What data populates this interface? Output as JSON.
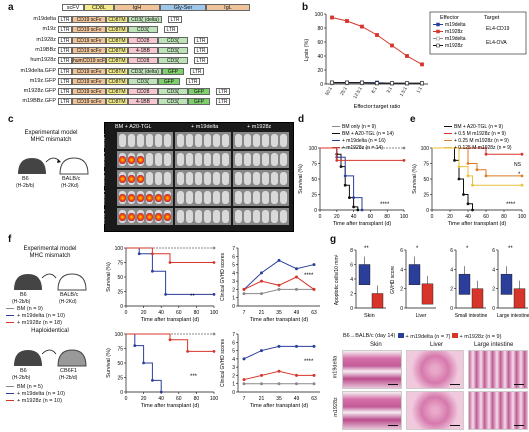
{
  "panels": {
    "a": "a",
    "b": "b",
    "c": "c",
    "d": "d",
    "e": "e",
    "f": "f",
    "g": "g"
  },
  "panel_a": {
    "header": [
      "scFV",
      "CD8L",
      "IgH",
      "Gly-Ser",
      "IgL"
    ],
    "constructs": [
      {
        "name": "m19delta",
        "parts": [
          "LTR",
          "CD19 scFv",
          "CD8TM",
          "CD3ζ (delta)",
          "LTR"
        ]
      },
      {
        "name": "m19z",
        "parts": [
          "LTR",
          "CD19 scFv",
          "CD8TM",
          "CD3ζ",
          "LTR"
        ]
      },
      {
        "name": "m1928z",
        "parts": [
          "LTR",
          "CD19 scFv",
          "CD8TM",
          "CD28",
          "CD3ζ",
          "LTR"
        ]
      },
      {
        "name": "m19BBz",
        "parts": [
          "LTR",
          "CD19 scFv",
          "CD8TM",
          "4-1BB",
          "CD3ζ",
          "LTR"
        ]
      },
      {
        "name": "hum1928z",
        "parts": [
          "LTR",
          "humCD19 scFv",
          "CD8TM",
          "CD28",
          "CD3ζ",
          "LTR"
        ]
      },
      {
        "name": "m19delta.GFP",
        "parts": [
          "LTR",
          "CD19 scFv",
          "CD8TM",
          "CD3ζ (delta)",
          "GFP",
          "LTR"
        ]
      },
      {
        "name": "m19z.GFP",
        "parts": [
          "LTR",
          "CD19 scFv",
          "CD8TM",
          "CD3ζ",
          "GFP",
          "LTR"
        ]
      },
      {
        "name": "m1928z.GFP",
        "parts": [
          "LTR",
          "CD19 scFv",
          "CD8TM",
          "CD28",
          "CD3ζ",
          "GFP",
          "LTR"
        ]
      },
      {
        "name": "m19BBz.GFP",
        "parts": [
          "LTR",
          "CD19 scFv",
          "CD8TM",
          "4-1BB",
          "CD3ζ",
          "GFP",
          "LTR"
        ]
      }
    ]
  },
  "panel_c": {
    "model_title": "Experimental model",
    "model_sub": "MHC mismatch",
    "donor": "B6",
    "donor_h": "(H-2b/b)",
    "recipient": "BALB/c",
    "recipient_h": "(H-2Kd)",
    "columns": [
      "BM + A20-TGL",
      "+ m19delta",
      "+ m1928z"
    ],
    "weeks": [
      "Week 1",
      "Week 2",
      "Week 3",
      "Week 4",
      "Week 7"
    ]
  },
  "panel_f": {
    "top": {
      "model_title": "Experimental model",
      "model_sub": "MHC mismatch",
      "donor": "B6",
      "donor_h": "(H-2b/b)",
      "recipient": "BALB/c",
      "recipient_h": "(H-2Kd)",
      "legend": [
        "BM (n = 9)",
        "+ m19delta (n = 10)",
        "+ m1928z (n = 18)"
      ],
      "sig_surv": "**",
      "sig_gvhd": "****"
    },
    "bottom": {
      "model_title": "Haploidentical",
      "donor": "B6",
      "donor_h": "(H-2b/b)",
      "recipient": "CB6F1",
      "recipient_h": "(H-2b/d)",
      "legend": [
        "BM (n = 5)",
        "+ m19delta (n = 10)",
        "+ m1928z (n = 10)"
      ],
      "sig_surv": "***",
      "sig_gvhd": "****"
    },
    "surv_ylabel": "Survival (%)",
    "surv_xlabel": "Time after transplant (d)",
    "gvhd_ylabel": "Clinical GVHD scores",
    "gvhd_xlabel": "Time after transplant (d)"
  },
  "panel_g": {
    "ylabel_left": "Apoptotic cells/10 mm²",
    "ylabel_mid": "GVHD score",
    "sig": [
      "**",
      "*",
      "*",
      "**"
    ],
    "groups": [
      "Skin",
      "Liver",
      "Small intestine",
      "Large intestine"
    ],
    "caption": "B6→BALB/c (day 14)",
    "legend": [
      "+ m19delta (n = 7)",
      "+ m1928z (n = 9)"
    ],
    "histo_cols": [
      "Skin",
      "Liver",
      "Large intestine"
    ],
    "histo_rows": [
      "m19delta",
      "m1928z"
    ]
  },
  "colors": {
    "red": "#d8352a",
    "blue": "#2b3f9a",
    "grey": "#8a8a8a",
    "black": "#111111",
    "orange": "#e07b22",
    "yellow": "#e8c23a"
  },
  "chart_data": [
    {
      "id": "b",
      "type": "line",
      "xlabel": "Effector:target ratio",
      "ylabel": "Lysis (%)",
      "ylim": [
        0,
        100
      ],
      "categories": [
        "50:1",
        "25:1",
        "12.5:1",
        "6:1",
        "3:1",
        "1.5:1",
        "1:1"
      ],
      "legend_title": [
        "Effector",
        "Target"
      ],
      "target_labels": [
        "EL4-CD19",
        "EL4-OVA"
      ],
      "series": [
        {
          "name": "m19delta",
          "values": [
            2,
            2,
            2,
            2,
            1,
            1,
            1
          ]
        },
        {
          "name": "m1928z",
          "values": [
            95,
            90,
            82,
            70,
            55,
            40,
            28
          ]
        },
        {
          "name": "m19delta",
          "values": [
            1,
            1,
            1,
            1,
            1,
            1,
            1
          ]
        },
        {
          "name": "m1928z",
          "values": [
            2,
            2,
            2,
            1,
            1,
            1,
            1
          ]
        }
      ]
    },
    {
      "id": "d",
      "type": "line",
      "xlabel": "Time after transplant (d)",
      "ylabel": "Survival (%)",
      "ylim": [
        0,
        100
      ],
      "xlim": [
        0,
        100
      ],
      "series": [
        {
          "name": "BM only (n = 9)",
          "x": [
            0,
            100
          ],
          "y": [
            100,
            100
          ]
        },
        {
          "name": "BM + A20-TGL (n = 14)",
          "x": [
            0,
            20,
            25,
            30,
            35,
            40,
            45
          ],
          "y": [
            100,
            90,
            70,
            40,
            20,
            5,
            0
          ]
        },
        {
          "name": "+ m19delta (n = 16)",
          "x": [
            0,
            20,
            30,
            40,
            50
          ],
          "y": [
            100,
            85,
            55,
            20,
            0
          ]
        },
        {
          "name": "+ m1928z (n = 14)",
          "x": [
            0,
            20,
            100
          ],
          "y": [
            100,
            80,
            80
          ]
        }
      ],
      "sig": "****"
    },
    {
      "id": "e",
      "type": "line",
      "xlabel": "Time after transplant (d)",
      "ylabel": "Survival (%)",
      "ylim": [
        0,
        100
      ],
      "xlim": [
        0,
        100
      ],
      "series": [
        {
          "name": "BM + A20-TGL (n = 9)",
          "x": [
            0,
            25,
            30,
            35,
            40,
            45
          ],
          "y": [
            100,
            80,
            50,
            25,
            10,
            0
          ]
        },
        {
          "name": "+ 0.5 M m1928z (n = 9)",
          "x": [
            0,
            60,
            100
          ],
          "y": [
            100,
            90,
            90
          ]
        },
        {
          "name": "+ 0.25 M m1928z (n = 9)",
          "x": [
            0,
            40,
            50,
            60,
            100
          ],
          "y": [
            100,
            75,
            65,
            55,
            55
          ]
        },
        {
          "name": "+ 0.125 M m1928z (n = 9)",
          "x": [
            0,
            30,
            40,
            45,
            100
          ],
          "y": [
            100,
            70,
            55,
            40,
            40
          ]
        }
      ],
      "sig": [
        "NS",
        "*",
        "****"
      ]
    },
    {
      "id": "f_top_survival",
      "type": "line",
      "ylim": [
        0,
        100
      ],
      "xlim": [
        0,
        100
      ],
      "series": [
        {
          "name": "BM (n = 9)",
          "x": [
            0,
            100
          ],
          "y": [
            100,
            100
          ]
        },
        {
          "name": "+ m19delta (n = 10)",
          "x": [
            0,
            15,
            30,
            45,
            100
          ],
          "y": [
            100,
            90,
            60,
            20,
            20
          ]
        },
        {
          "name": "+ m1928z (n = 18)",
          "x": [
            0,
            30,
            50,
            100
          ],
          "y": [
            100,
            90,
            75,
            75
          ]
        }
      ]
    },
    {
      "id": "f_top_gvhd",
      "type": "line",
      "ylim": [
        0,
        7
      ],
      "categories": [
        "7",
        "21",
        "35",
        "49",
        "63"
      ],
      "series": [
        {
          "name": "BM (n = 9)",
          "values": [
            1.5,
            1.5,
            2,
            2,
            2
          ]
        },
        {
          "name": "+ m19delta (n = 10)",
          "values": [
            2,
            4,
            5.5,
            4.5,
            5
          ]
        },
        {
          "name": "+ m1928z (n = 18)",
          "values": [
            2,
            3,
            2.5,
            3.5,
            2
          ]
        }
      ]
    },
    {
      "id": "f_bottom_survival",
      "type": "line",
      "ylim": [
        0,
        100
      ],
      "xlim": [
        0,
        100
      ],
      "series": [
        {
          "name": "BM (n = 5)",
          "x": [
            0,
            100
          ],
          "y": [
            100,
            100
          ]
        },
        {
          "name": "+ m19delta (n = 10)",
          "x": [
            0,
            10,
            20,
            30,
            40
          ],
          "y": [
            100,
            80,
            50,
            20,
            0
          ]
        },
        {
          "name": "+ m1928z (n = 10)",
          "x": [
            0,
            50,
            70,
            100
          ],
          "y": [
            100,
            90,
            70,
            70
          ]
        }
      ]
    },
    {
      "id": "f_bottom_gvhd",
      "type": "line",
      "ylim": [
        0,
        7
      ],
      "categories": [
        "7",
        "21",
        "35",
        "49",
        "63"
      ],
      "series": [
        {
          "name": "BM (n = 5)",
          "values": [
            1,
            1,
            1,
            1,
            1
          ]
        },
        {
          "name": "+ m19delta (n = 10)",
          "values": [
            4,
            5,
            5.5,
            5.5,
            5.5
          ]
        },
        {
          "name": "+ m1928z (n = 10)",
          "values": [
            1.5,
            2,
            2.5,
            2,
            2
          ]
        }
      ]
    },
    {
      "id": "g_apoptotic",
      "type": "bar",
      "categories": [
        "m19delta",
        "m1928z"
      ],
      "values": [
        6,
        2
      ]
    },
    {
      "id": "g_gvhd_scores",
      "type": "bar",
      "categories": [
        "Liver",
        "Small intestine",
        "Large intestine"
      ],
      "series": [
        {
          "name": "+ m19delta (n = 7)",
          "values": [
            4.5,
            3.5,
            3.5
          ]
        },
        {
          "name": "+ m1928z (n = 9)",
          "values": [
            2.5,
            2,
            2
          ]
        }
      ]
    }
  ]
}
